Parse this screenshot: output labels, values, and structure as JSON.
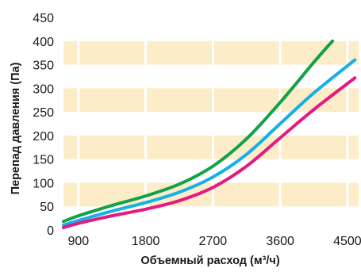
{
  "chart_data": {
    "type": "line",
    "title": "",
    "xlabel": "Объемный расход (м³/ч)",
    "ylabel": "Перепад давления (Па)",
    "xlim": [
      700,
      4650
    ],
    "ylim": [
      0,
      450
    ],
    "x_ticks": [
      "900",
      "1800",
      "2700",
      "3600",
      "4500"
    ],
    "y_ticks": [
      "0",
      "50",
      "100",
      "150",
      "200",
      "250",
      "300",
      "350",
      "400",
      "450"
    ],
    "grid": true,
    "background_bands": true,
    "colors": {
      "band": "#fdecc8",
      "grid": "#ffffff",
      "text": "#1a1a1a"
    },
    "series": [
      {
        "color": "#13a14a",
        "x": [
          700,
          900,
          1350,
          1800,
          2250,
          2700,
          3150,
          3600,
          4050,
          4300
        ],
        "y": [
          18,
          30,
          52,
          72,
          97,
          135,
          193,
          270,
          355,
          400
        ]
      },
      {
        "color": "#15b0e8",
        "x": [
          700,
          900,
          1350,
          1800,
          2250,
          2700,
          3150,
          3600,
          4050,
          4600
        ],
        "y": [
          10,
          20,
          40,
          58,
          80,
          112,
          160,
          225,
          290,
          360
        ]
      },
      {
        "color": "#e5197f",
        "x": [
          700,
          900,
          1350,
          1800,
          2250,
          2700,
          3150,
          3600,
          4050,
          4600
        ],
        "y": [
          5,
          14,
          30,
          44,
          62,
          90,
          135,
          195,
          255,
          322
        ]
      }
    ]
  }
}
